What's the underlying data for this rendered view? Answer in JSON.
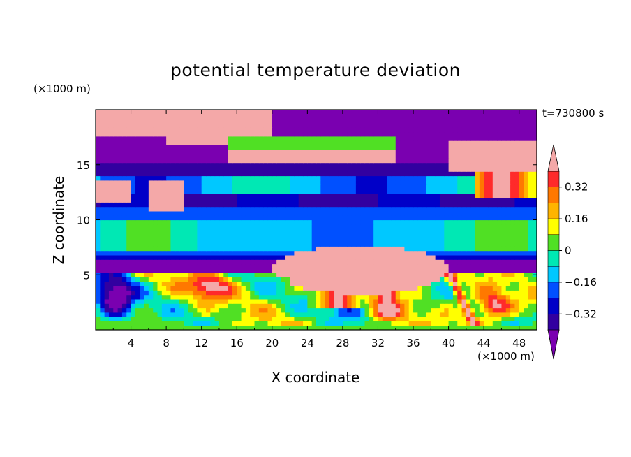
{
  "chart_data": {
    "type": "heatmap",
    "title": "potential temperature deviation",
    "time_label": "t=730800 s",
    "xlabel": "X coordinate",
    "ylabel": "Z coordinate",
    "x_unit": "(×1000 m)",
    "y_unit": "(×1000 m)",
    "xlim": [
      0,
      50
    ],
    "ylim": [
      0,
      20
    ],
    "x_ticks": [
      4,
      8,
      12,
      16,
      20,
      24,
      28,
      32,
      36,
      40,
      44,
      48
    ],
    "y_ticks": [
      5,
      10,
      15
    ],
    "colorbar": {
      "levels": [
        -0.4,
        -0.32,
        -0.24,
        -0.16,
        -0.08,
        0,
        0.08,
        0.16,
        0.24,
        0.32,
        0.4
      ],
      "tick_labels": [
        "0.32",
        "0.16",
        "0",
        "−0.16",
        "−0.32"
      ],
      "tick_values": [
        0.32,
        0.16,
        0,
        -0.16,
        -0.32
      ],
      "colors_low_to_high": [
        "#7a00b0",
        "#3200a0",
        "#0000c8",
        "#0050ff",
        "#00c8ff",
        "#00e8b4",
        "#50e024",
        "#ffff00",
        "#ffb400",
        "#ff7800",
        "#ff2a2a",
        "#f4a8a8"
      ],
      "extend": "both"
    },
    "horizontal_bands": [
      {
        "z": [
          0,
          0.5
        ],
        "value": "~0 (cyan/green)"
      },
      {
        "z": [
          5.3,
          6.2
        ],
        "value": "< -0.4 (purple)"
      },
      {
        "z": [
          6.2,
          7.2
        ],
        "value": "~ -0.3 (blue)"
      },
      {
        "z": [
          7.2,
          10.2
        ],
        "value": "~ -0.1 to 0.05 (cyan/green)"
      },
      {
        "z": [
          10.5,
          13
        ],
        "value": "~ -0.3 to -0.1 (blue)"
      },
      {
        "z": [
          14,
          17
        ],
        "value": "< -0.4 (purple)"
      },
      {
        "z": [
          17,
          20
        ],
        "value": "> 0.4 (pink) / < -0.4 (purple)"
      }
    ]
  }
}
